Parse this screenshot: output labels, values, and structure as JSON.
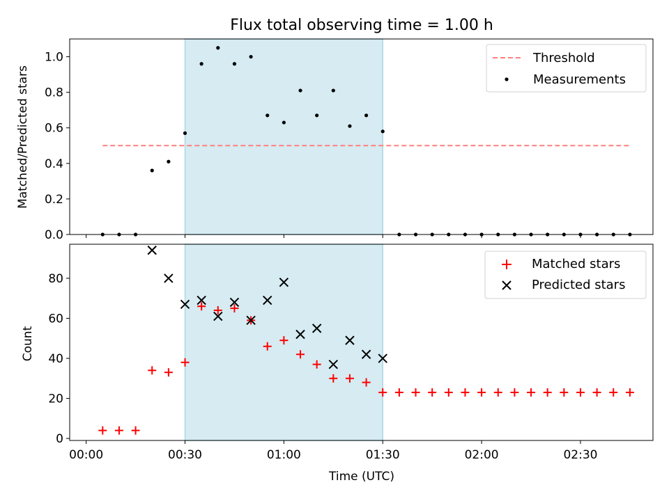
{
  "title": "Flux total observing time = 1.00 h",
  "xlabel": "Time (UTC)",
  "x_ticks": [
    "00:00",
    "00:30",
    "01:00",
    "01:30",
    "02:00",
    "02:30"
  ],
  "colors": {
    "threshold": "#ff7f7f",
    "measurements": "#000000",
    "matched": "#ff0000",
    "predicted": "#000000",
    "span": "#add8e6"
  },
  "chart_data": [
    {
      "type": "scatter",
      "ylabel": "Matched/Predicted stars",
      "ylim": [
        0,
        1.1
      ],
      "y_ticks": [
        "0.0",
        "0.2",
        "0.4",
        "0.6",
        "0.8",
        "1.0"
      ],
      "x_unit": "minutes after 00:00 UTC",
      "xlim": [
        -5,
        172
      ],
      "shaded_span": [
        30,
        90
      ],
      "legend_position": "upper right",
      "series": [
        {
          "name": "Threshold",
          "style": "dashed-line",
          "x": [
            5,
            165
          ],
          "values": [
            0.5,
            0.5
          ]
        },
        {
          "name": "Measurements",
          "style": "dot",
          "x": [
            5,
            10,
            15,
            20,
            25,
            30,
            35,
            40,
            45,
            50,
            55,
            60,
            65,
            70,
            75,
            80,
            85,
            90,
            95,
            100,
            105,
            110,
            115,
            120,
            125,
            130,
            135,
            140,
            145,
            150,
            155,
            160,
            165
          ],
          "values": [
            0,
            0,
            0,
            0.36,
            0.41,
            0.57,
            0.96,
            1.05,
            0.96,
            1.0,
            0.67,
            0.63,
            0.81,
            0.67,
            0.81,
            0.61,
            0.67,
            0.58,
            0,
            0,
            0,
            0,
            0,
            0,
            0,
            0,
            0,
            0,
            0,
            0,
            0,
            0,
            0
          ]
        }
      ]
    },
    {
      "type": "scatter",
      "ylabel": "Count",
      "ylim": [
        -1,
        97
      ],
      "y_ticks": [
        "0",
        "20",
        "40",
        "60",
        "80"
      ],
      "x_unit": "minutes after 00:00 UTC",
      "xlim": [
        -5,
        172
      ],
      "shaded_span": [
        30,
        90
      ],
      "legend_position": "upper right",
      "series": [
        {
          "name": "Matched stars",
          "style": "plus",
          "x": [
            5,
            10,
            15,
            20,
            25,
            30,
            35,
            40,
            45,
            50,
            55,
            60,
            65,
            70,
            75,
            80,
            85,
            90,
            95,
            100,
            105,
            110,
            115,
            120,
            125,
            130,
            135,
            140,
            145,
            150,
            155,
            160,
            165
          ],
          "values": [
            4,
            4,
            4,
            34,
            33,
            38,
            66,
            64,
            65,
            59,
            46,
            49,
            42,
            37,
            30,
            30,
            28,
            23,
            23,
            23,
            23,
            23,
            23,
            23,
            23,
            23,
            23,
            23,
            23,
            23,
            23,
            23,
            23
          ]
        },
        {
          "name": "Predicted stars",
          "style": "x",
          "x": [
            20,
            25,
            30,
            35,
            40,
            45,
            50,
            55,
            60,
            65,
            70,
            75,
            80,
            85,
            90
          ],
          "values": [
            94,
            80,
            67,
            69,
            61,
            68,
            59,
            69,
            78,
            52,
            55,
            37,
            49,
            42,
            40
          ]
        }
      ]
    }
  ]
}
